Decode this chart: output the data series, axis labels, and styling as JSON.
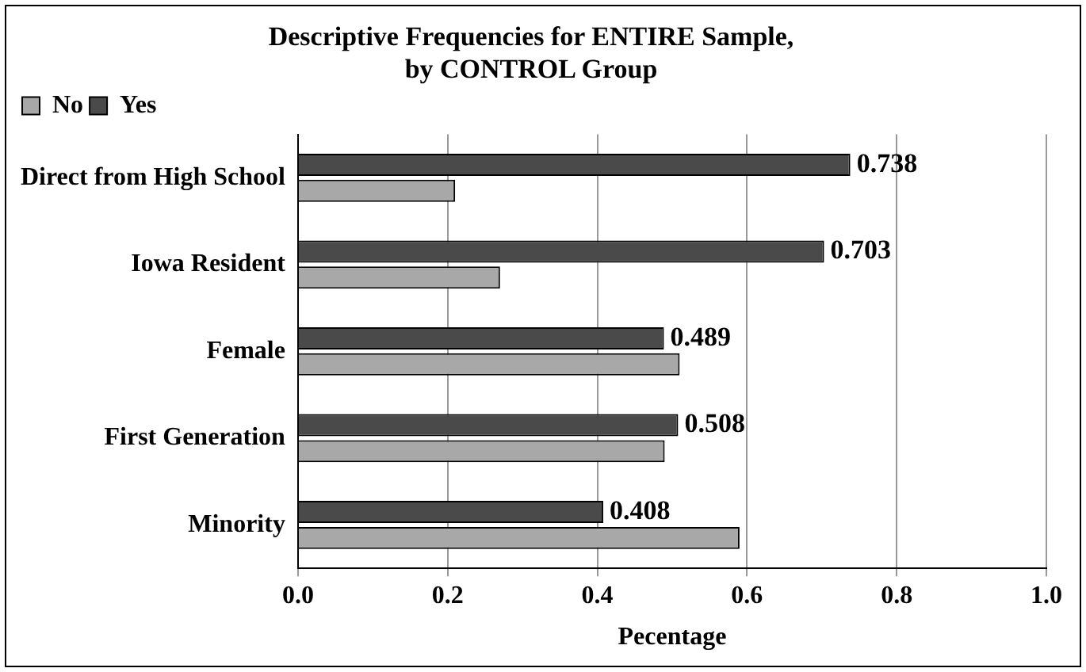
{
  "chart_data": {
    "type": "bar",
    "orientation": "horizontal",
    "title": "Descriptive Frequencies for ENTIRE Sample,\nby CONTROL Group",
    "xlabel": "Pecentage",
    "categories": [
      "Direct from High School",
      "Iowa Resident",
      "Female",
      "First Generation",
      "Minority"
    ],
    "series": [
      {
        "name": "No",
        "color": "#a8a8a8",
        "values": [
          0.21,
          0.27,
          0.51,
          0.49,
          0.59
        ]
      },
      {
        "name": "Yes",
        "color": "#4a4a4a",
        "values": [
          0.738,
          0.703,
          0.489,
          0.508,
          0.408
        ],
        "value_labels": [
          "0.738",
          "0.703",
          "0.489",
          "0.508",
          "0.408"
        ]
      }
    ],
    "xlim": [
      0,
      1
    ],
    "xticks": [
      {
        "value": 0,
        "label": "0.0"
      },
      {
        "value": 0.2,
        "label": "0.2"
      },
      {
        "value": 0.4,
        "label": "0.4"
      },
      {
        "value": 0.6,
        "label": "0.6"
      },
      {
        "value": 0.8,
        "label": "0.8"
      },
      {
        "value": 1,
        "label": "1.0"
      }
    ],
    "grid": "x",
    "legend": "top left"
  }
}
